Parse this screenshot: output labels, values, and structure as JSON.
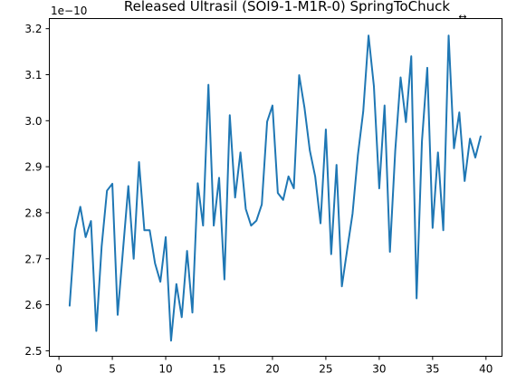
{
  "chart_data": {
    "type": "line",
    "title": "Released Ultrasil (SOI9-1-M1R-0) SpringToChuck",
    "offset_text": "1e−10",
    "corner_mark": "↔",
    "xlabel": "",
    "ylabel": "",
    "xlim": [
      -0.9,
      41.5
    ],
    "ylim": [
      2.488,
      3.222
    ],
    "x_ticks": [
      0,
      5,
      10,
      15,
      20,
      25,
      30,
      35,
      40
    ],
    "y_ticks": [
      2.5,
      2.6,
      2.7,
      2.8,
      2.9,
      3.0,
      3.1,
      3.2
    ],
    "y_tick_labels": [
      "2.5",
      "2.6",
      "2.7",
      "2.8",
      "2.9",
      "3.0",
      "3.1",
      "3.2"
    ],
    "grid": false,
    "line_color": "#1f77b4",
    "series": [
      {
        "x": [
          1.0,
          1.5,
          2.0,
          2.5,
          3.0,
          3.5,
          4.0,
          4.5,
          5.0,
          5.5,
          6.0,
          6.5,
          7.0,
          7.5,
          8.0,
          8.5,
          9.0,
          9.5,
          10.0,
          10.5,
          11.0,
          11.5,
          12.0,
          12.5,
          13.0,
          13.5,
          14.0,
          14.5,
          15.0,
          15.5,
          16.0,
          16.5,
          17.0,
          17.5,
          18.0,
          18.5,
          19.0,
          19.5,
          20.0,
          20.5,
          21.0,
          21.5,
          22.0,
          22.5,
          23.0,
          23.5,
          24.0,
          24.5,
          25.0,
          25.5,
          26.0,
          26.5,
          27.0,
          27.5,
          28.0,
          28.5,
          29.0,
          29.5,
          30.0,
          30.5,
          31.0,
          31.5,
          32.0,
          32.5,
          33.0,
          33.5,
          34.0,
          34.5,
          35.0,
          35.5,
          36.0,
          36.5,
          37.0,
          37.5,
          38.0,
          38.5,
          39.0,
          39.5
        ],
        "values": [
          2.598,
          2.762,
          2.813,
          2.747,
          2.782,
          2.543,
          2.727,
          2.848,
          2.863,
          2.578,
          2.719,
          2.858,
          2.7,
          2.91,
          2.762,
          2.762,
          2.69,
          2.65,
          2.747,
          2.522,
          2.645,
          2.573,
          2.717,
          2.583,
          2.864,
          2.772,
          3.078,
          2.772,
          2.876,
          2.655,
          3.012,
          2.833,
          2.931,
          2.808,
          2.772,
          2.783,
          2.818,
          2.998,
          3.033,
          2.843,
          2.828,
          2.879,
          2.853,
          3.099,
          3.028,
          2.935,
          2.879,
          2.777,
          2.981,
          2.71,
          2.904,
          2.64,
          2.72,
          2.798,
          2.925,
          3.02,
          3.185,
          3.075,
          2.853,
          3.033,
          2.715,
          2.935,
          3.094,
          2.997,
          3.14,
          2.614,
          2.955,
          3.115,
          2.767,
          2.931,
          2.762,
          3.185,
          2.94,
          3.018,
          2.869,
          2.961,
          2.92,
          2.966
        ]
      }
    ]
  }
}
